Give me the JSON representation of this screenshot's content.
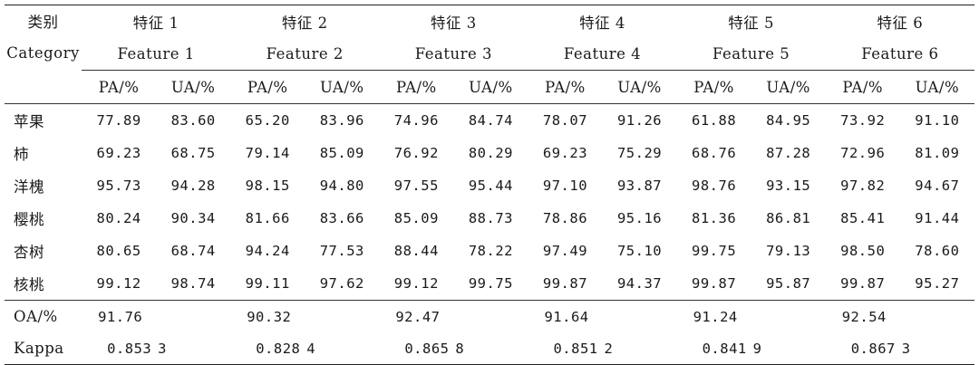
{
  "header": {
    "category_zh": "类别",
    "category_en": "Category",
    "features": [
      {
        "zh": "特征 1",
        "en": "Feature 1"
      },
      {
        "zh": "特征 2",
        "en": "Feature 2"
      },
      {
        "zh": "特征 3",
        "en": "Feature 3"
      },
      {
        "zh": "特征 4",
        "en": "Feature 4"
      },
      {
        "zh": "特征 5",
        "en": "Feature 5"
      },
      {
        "zh": "特征 6",
        "en": "Feature 6"
      }
    ],
    "pa": "PA/%",
    "ua": "UA/%"
  },
  "rows": [
    {
      "category": "苹果",
      "values": [
        "77.89",
        "83.60",
        "65.20",
        "83.96",
        "74.96",
        "84.74",
        "78.07",
        "91.26",
        "61.88",
        "84.95",
        "73.92",
        "91.10"
      ]
    },
    {
      "category": "柿",
      "values": [
        "69.23",
        "68.75",
        "79.14",
        "85.09",
        "76.92",
        "80.29",
        "69.23",
        "75.29",
        "68.76",
        "87.28",
        "72.96",
        "81.09"
      ]
    },
    {
      "category": "洋槐",
      "values": [
        "95.73",
        "94.28",
        "98.15",
        "94.80",
        "97.55",
        "95.44",
        "97.10",
        "93.87",
        "98.76",
        "93.15",
        "97.82",
        "94.67"
      ]
    },
    {
      "category": "樱桃",
      "values": [
        "80.24",
        "90.34",
        "81.66",
        "83.66",
        "85.09",
        "88.73",
        "78.86",
        "95.16",
        "81.36",
        "86.81",
        "85.41",
        "91.44"
      ]
    },
    {
      "category": "杏树",
      "values": [
        "80.65",
        "68.74",
        "94.24",
        "77.53",
        "88.44",
        "78.22",
        "97.49",
        "75.10",
        "99.75",
        "79.13",
        "98.50",
        "78.60"
      ]
    },
    {
      "category": "核桃",
      "values": [
        "99.12",
        "98.74",
        "99.11",
        "97.62",
        "99.12",
        "99.75",
        "99.87",
        "94.37",
        "99.87",
        "95.87",
        "99.87",
        "95.27"
      ]
    }
  ],
  "summary": {
    "oa_label": "OA/%",
    "oa": [
      "91.76",
      "90.32",
      "92.47",
      "91.64",
      "91.24",
      "92.54"
    ],
    "kappa_label": "Kappa",
    "kappa": [
      "0.853 3",
      "0.828 4",
      "0.865 8",
      "0.851 2",
      "0.841 9",
      "0.867 3"
    ]
  }
}
